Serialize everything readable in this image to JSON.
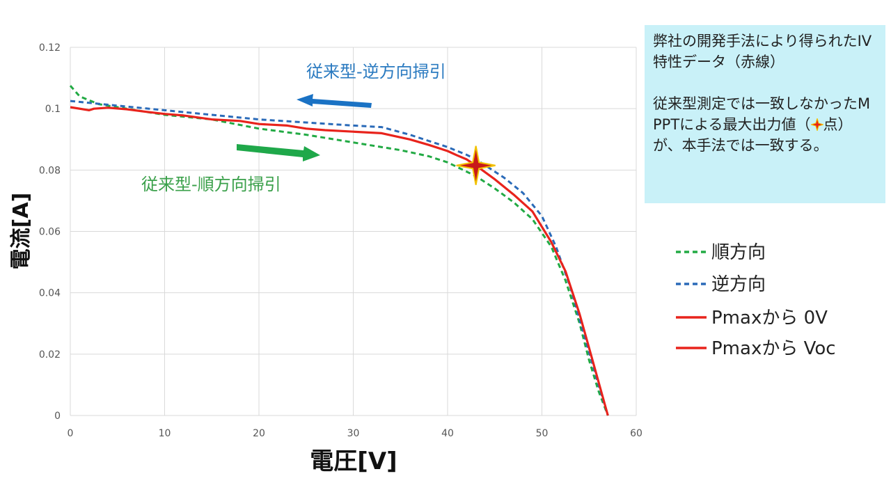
{
  "chart_data": {
    "type": "line",
    "xlabel": "電圧[V]",
    "ylabel": "電流[A]",
    "xlim": [
      0,
      60
    ],
    "ylim": [
      0,
      0.12
    ],
    "xticks": [
      "0",
      "10",
      "20",
      "30",
      "40",
      "50",
      "60"
    ],
    "yticks": [
      "0",
      "0.02",
      "0.04",
      "0.06",
      "0.08",
      "0.1",
      "0.12"
    ],
    "grid": true,
    "legend_position": "right",
    "series": [
      {
        "name": "順方向",
        "style": "dashed",
        "color": "#22aa44",
        "x": [
          0,
          1,
          3,
          6,
          10,
          15,
          20,
          25,
          30,
          35,
          38,
          40,
          42,
          43,
          45,
          47,
          49,
          51,
          52.5,
          54,
          55,
          56,
          57
        ],
        "y": [
          0.1075,
          0.104,
          0.1015,
          0.1,
          0.098,
          0.0965,
          0.0935,
          0.0915,
          0.089,
          0.0865,
          0.0845,
          0.0825,
          0.0795,
          0.078,
          0.074,
          0.0695,
          0.064,
          0.055,
          0.044,
          0.03,
          0.018,
          0.008,
          0.0
        ]
      },
      {
        "name": "逆方向",
        "style": "dashed",
        "color": "#2a6ab8",
        "x": [
          0,
          5,
          10,
          15,
          20,
          25,
          30,
          33,
          36,
          38,
          40,
          42,
          43,
          44,
          46,
          48,
          50,
          51.5,
          53,
          54.5,
          56,
          57
        ],
        "y": [
          0.1025,
          0.101,
          0.0995,
          0.098,
          0.0965,
          0.0955,
          0.0945,
          0.094,
          0.0915,
          0.0895,
          0.0875,
          0.085,
          0.0835,
          0.0815,
          0.0775,
          0.0725,
          0.065,
          0.055,
          0.042,
          0.026,
          0.01,
          0.0
        ]
      },
      {
        "name": "Pmaxから 0V",
        "style": "solid",
        "color": "#e8231c",
        "x": [
          0,
          2,
          2.5,
          4,
          6,
          8,
          10,
          12,
          15,
          18,
          20,
          23,
          25,
          27,
          30,
          33,
          36,
          38,
          40,
          41,
          42,
          43
        ],
        "y": [
          0.1005,
          0.0995,
          0.1,
          0.1003,
          0.0998,
          0.099,
          0.0983,
          0.0978,
          0.0965,
          0.096,
          0.095,
          0.0945,
          0.0935,
          0.093,
          0.0925,
          0.092,
          0.09,
          0.0882,
          0.0862,
          0.0848,
          0.0835,
          0.0815
        ]
      },
      {
        "name": "Pmaxから Voc",
        "style": "solid",
        "color": "#e8231c",
        "x": [
          43,
          45,
          47,
          49,
          51,
          52.5,
          54,
          55,
          56,
          57
        ],
        "y": [
          0.0815,
          0.077,
          0.072,
          0.0665,
          0.0565,
          0.047,
          0.033,
          0.022,
          0.011,
          0.0
        ]
      }
    ],
    "annotations": [
      {
        "text": "従来型-逆方向掃引",
        "color": "#2a7ac0"
      },
      {
        "text": "従来型-順方向掃引",
        "color": "#3aa04a"
      }
    ],
    "marker": {
      "name": "max-power-point",
      "x": 43,
      "y": 0.0815
    },
    "arrows": [
      {
        "name": "reverse-sweep-arrow",
        "direction": "left",
        "color": "#1a72c4"
      },
      {
        "name": "forward-sweep-arrow",
        "direction": "right",
        "color": "#1fa84a"
      }
    ]
  },
  "note": {
    "para1": "弊社の開発手法により得られたIV特性データ（赤線）",
    "para2_before": "従来型測定では一致しなかったMPPTによる最大出力値（",
    "para2_after": "点）が、本手法では一致する。"
  }
}
